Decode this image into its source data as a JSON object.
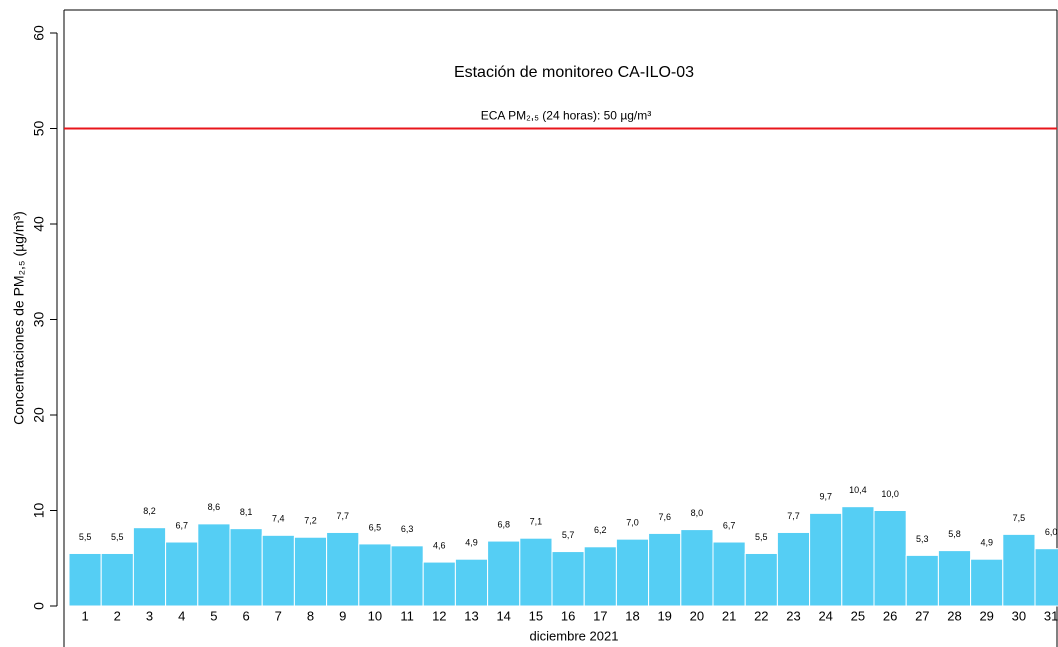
{
  "chart_data": {
    "type": "bar",
    "title": "Estación de monitoreo  CA-ILO-03",
    "x_label": "diciembre 2021",
    "y_label": "Concentraciones de PM₂,₅ (µg/m³)",
    "categories": [
      "1",
      "2",
      "3",
      "4",
      "5",
      "6",
      "7",
      "8",
      "9",
      "10",
      "11",
      "12",
      "13",
      "14",
      "15",
      "16",
      "17",
      "18",
      "19",
      "20",
      "21",
      "22",
      "23",
      "24",
      "25",
      "26",
      "27",
      "28",
      "29",
      "30",
      "31"
    ],
    "values": [
      5.5,
      5.5,
      8.2,
      6.7,
      8.6,
      8.1,
      7.4,
      7.2,
      7.7,
      6.5,
      6.3,
      4.6,
      4.9,
      6.8,
      7.1,
      5.7,
      6.2,
      7.0,
      7.6,
      8.0,
      6.7,
      5.5,
      7.7,
      9.7,
      10.4,
      10.0,
      5.3,
      5.8,
      4.9,
      7.5,
      6.0
    ],
    "value_labels": [
      "5,5",
      "5,5",
      "8,2",
      "6,7",
      "8,6",
      "8,1",
      "7,4",
      "7,2",
      "7,7",
      "6,5",
      "6,3",
      "4,6",
      "4,9",
      "6,8",
      "7,1",
      "5,7",
      "6,2",
      "7,0",
      "7,6",
      "8,0",
      "6,7",
      "5,5",
      "7,7",
      "9,7",
      "10,4",
      "10,0",
      "5,3",
      "5,8",
      "4,9",
      "7,5",
      "6,0"
    ],
    "color": "#55cef4",
    "reference_line": {
      "value": 50,
      "label": "ECA PM₂,₅ (24 horas): 50 µg/m³",
      "color": "#e8151b"
    },
    "ylim": [
      0,
      60
    ],
    "yticks": [
      0,
      10,
      20,
      30,
      40,
      50,
      60
    ]
  }
}
